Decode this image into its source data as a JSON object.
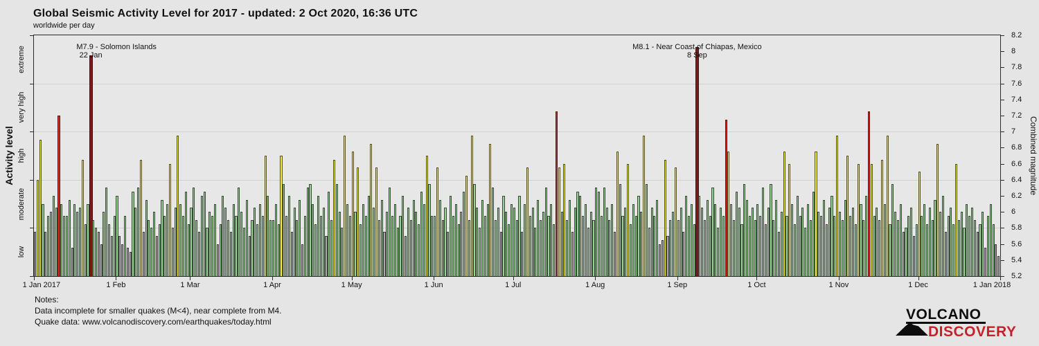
{
  "header": {
    "title": "Global Seismic Activity Level for 2017 - updated:  2 Oct 2020, 16:36 UTC",
    "subtitle": "worldwide per day"
  },
  "chart_data": {
    "type": "bar",
    "title": "Global Seismic Activity Level for 2017",
    "ylabel_left": "Activity level",
    "ylabel_right": "Combined magnitude",
    "ylim": [
      5.2,
      8.2
    ],
    "grid": "horizontal lines at category boundaries 5.8, 6.4, 7.0, 7.6",
    "activity_levels_top_to_bottom": [
      "extreme",
      "very high",
      "high",
      "moderate",
      "low"
    ],
    "level_thresholds": {
      "low": [
        5.2,
        5.8
      ],
      "moderate": [
        5.8,
        6.4
      ],
      "high": [
        6.4,
        7.0
      ],
      "very high": [
        7.0,
        7.6
      ],
      "extreme": [
        7.6,
        8.2
      ]
    },
    "colors": {
      "low": "#ababab",
      "moderate": "#98d292",
      "high": "#f6f02e",
      "very high": "#e3241b",
      "extreme": "#7b1a17"
    },
    "y_ticks_right": [
      "8.2",
      "8",
      "7.8",
      "7.6",
      "7.4",
      "7.2",
      "7",
      "6.8",
      "6.6",
      "6.4",
      "6.2",
      "6",
      "5.8",
      "5.6",
      "5.4",
      "5.2"
    ],
    "x_ticks": [
      {
        "label": "1 Jan 2017",
        "day": 1
      },
      {
        "label": "1 Feb",
        "day": 32
      },
      {
        "label": "1 Mar",
        "day": 60
      },
      {
        "label": "1 Apr",
        "day": 91
      },
      {
        "label": "1 May",
        "day": 121
      },
      {
        "label": "1 Jun",
        "day": 152
      },
      {
        "label": "1 Jul",
        "day": 182
      },
      {
        "label": "1 Aug",
        "day": 213
      },
      {
        "label": "1 Sep",
        "day": 244
      },
      {
        "label": "1 Oct",
        "day": 274
      },
      {
        "label": "1 Nov",
        "day": 305
      },
      {
        "label": "1 Dec",
        "day": 335
      },
      {
        "label": "1 Jan 2018",
        "day": 366
      }
    ],
    "annotations": [
      {
        "label": "M7.9 - Solomon Islands",
        "date_label": "22 Jan",
        "day": 22
      },
      {
        "label": "M8.1 - Near Coast of Chiapas, Mexico",
        "date_label": "8 Sep",
        "day": 251
      }
    ],
    "series_name": "Combined magnitude per day (1 Jan 2017 - 31 Dec 2017, estimated from bars)",
    "values": [
      5.75,
      6.4,
      6.9,
      6.1,
      5.75,
      5.95,
      6.0,
      6.2,
      6.05,
      7.2,
      6.1,
      5.95,
      5.95,
      6.15,
      5.55,
      6.1,
      6.0,
      6.05,
      6.65,
      5.85,
      6.1,
      7.95,
      5.9,
      5.8,
      5.75,
      5.6,
      6.0,
      6.3,
      5.85,
      5.7,
      5.95,
      6.2,
      5.7,
      5.6,
      5.95,
      5.55,
      5.5,
      6.25,
      6.05,
      6.3,
      6.65,
      5.75,
      6.15,
      5.9,
      5.8,
      6.0,
      5.7,
      5.85,
      6.15,
      5.95,
      6.1,
      6.6,
      5.8,
      6.05,
      6.95,
      6.1,
      5.95,
      6.25,
      5.85,
      6.05,
      6.3,
      5.9,
      5.75,
      6.2,
      6.25,
      5.8,
      6.0,
      5.95,
      6.1,
      5.6,
      5.85,
      6.2,
      6.05,
      5.9,
      5.75,
      6.1,
      5.95,
      6.3,
      6.0,
      5.8,
      6.15,
      5.7,
      5.9,
      6.05,
      5.85,
      6.1,
      5.95,
      6.7,
      6.2,
      5.9,
      5.9,
      6.1,
      5.85,
      6.7,
      6.35,
      5.95,
      6.2,
      5.75,
      6.05,
      5.9,
      6.15,
      5.6,
      5.95,
      6.3,
      6.35,
      6.1,
      5.85,
      6.2,
      5.95,
      6.05,
      5.7,
      6.25,
      5.9,
      6.65,
      6.35,
      6.0,
      5.8,
      6.95,
      6.1,
      5.95,
      6.75,
      6.0,
      6.55,
      5.85,
      6.1,
      5.95,
      6.2,
      6.85,
      6.05,
      6.55,
      5.9,
      6.15,
      5.75,
      6.0,
      6.3,
      5.95,
      6.1,
      5.8,
      5.95,
      6.2,
      5.7,
      6.05,
      5.9,
      6.15,
      6.0,
      5.85,
      6.25,
      6.1,
      6.7,
      6.35,
      5.95,
      5.95,
      6.55,
      6.15,
      5.9,
      6.05,
      5.75,
      6.2,
      5.95,
      6.1,
      5.85,
      6.0,
      6.25,
      6.45,
      5.9,
      6.95,
      6.35,
      6.05,
      5.8,
      6.15,
      5.95,
      6.1,
      6.85,
      6.3,
      5.9,
      6.05,
      5.75,
      6.2,
      6.0,
      5.85,
      6.1,
      6.05,
      5.9,
      6.2,
      5.75,
      6.1,
      6.55,
      5.95,
      6.05,
      5.8,
      6.15,
      5.9,
      6.0,
      6.3,
      5.95,
      6.1,
      5.85,
      7.25,
      6.55,
      6.0,
      6.6,
      5.9,
      6.15,
      5.75,
      6.05,
      6.25,
      6.2,
      5.95,
      6.1,
      5.8,
      6.0,
      5.9,
      6.3,
      6.25,
      5.95,
      6.3,
      6.05,
      5.9,
      6.1,
      5.75,
      6.75,
      6.35,
      5.95,
      6.05,
      6.6,
      5.85,
      6.1,
      5.95,
      6.2,
      6.0,
      6.95,
      6.35,
      5.8,
      6.05,
      5.95,
      6.15,
      5.6,
      5.65,
      6.65,
      5.7,
      5.9,
      6.0,
      6.55,
      5.9,
      6.05,
      5.75,
      6.2,
      5.95,
      6.1,
      5.85,
      8.05,
      6.2,
      6.05,
      5.9,
      6.15,
      5.95,
      6.3,
      6.1,
      5.8,
      6.05,
      5.95,
      7.15,
      6.75,
      6.1,
      5.9,
      6.25,
      6.05,
      5.85,
      6.35,
      6.15,
      5.95,
      6.05,
      5.9,
      6.1,
      5.95,
      6.3,
      5.85,
      6.05,
      6.35,
      5.9,
      6.15,
      5.75,
      6.0,
      6.75,
      5.95,
      6.6,
      6.1,
      5.85,
      6.2,
      5.95,
      6.05,
      5.8,
      6.1,
      5.9,
      6.25,
      6.75,
      6.0,
      5.95,
      6.15,
      5.85,
      6.05,
      6.2,
      5.95,
      6.95,
      6.0,
      5.9,
      6.15,
      6.7,
      5.95,
      6.05,
      5.85,
      6.6,
      6.1,
      5.9,
      6.2,
      7.25,
      6.6,
      5.95,
      6.05,
      5.9,
      6.65,
      6.1,
      6.95,
      5.85,
      6.35,
      6.0,
      5.9,
      6.1,
      5.75,
      5.8,
      5.95,
      6.05,
      5.7,
      5.85,
      6.5,
      5.95,
      6.1,
      5.85,
      6.05,
      5.9,
      6.15,
      6.85,
      6.0,
      6.2,
      5.75,
      5.95,
      6.05,
      5.85,
      6.6,
      5.9,
      6.0,
      5.8,
      6.1,
      5.95,
      6.05,
      5.9,
      5.75,
      5.85,
      6.0,
      5.55,
      5.95,
      6.1,
      5.85,
      5.6,
      5.45
    ]
  },
  "notes": {
    "heading": "Notes:",
    "line1": "Data incomplete for smaller quakes (M<4), near complete from M4.",
    "line2": "Quake data: www.volcanodiscovery.com/earthquakes/today.html"
  },
  "logo": {
    "line1": "VOLCANO",
    "line2": "DISCOVERY",
    "accent_color": "#c4212b"
  }
}
